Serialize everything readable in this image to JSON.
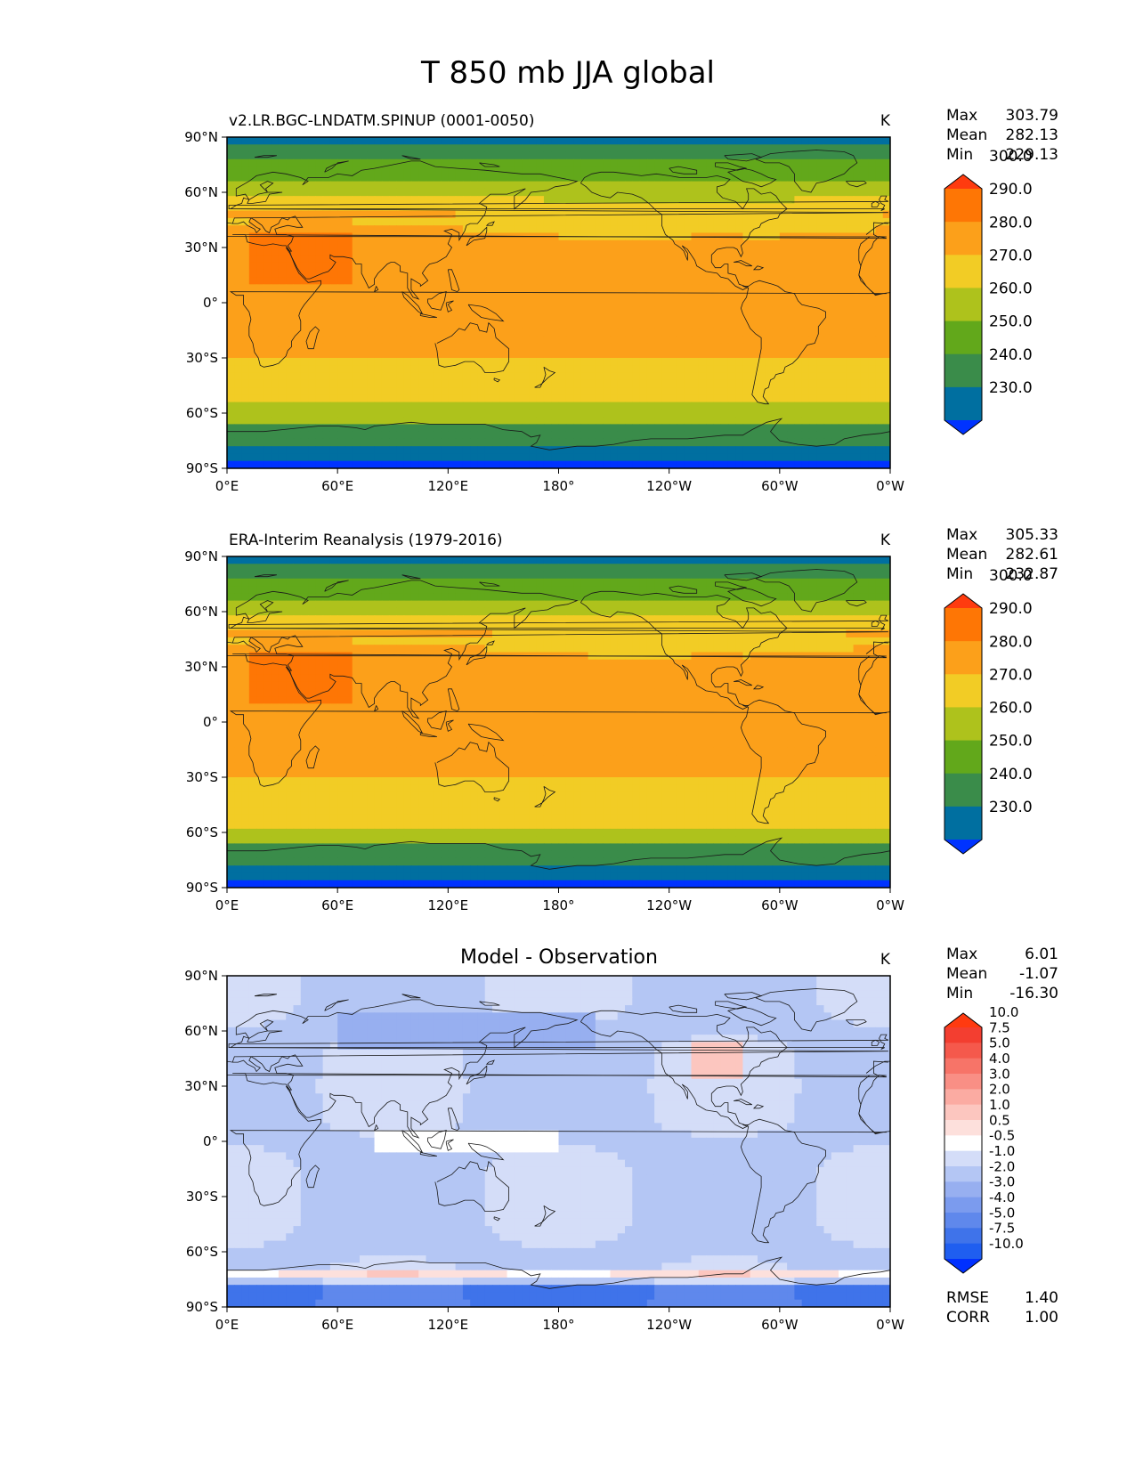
{
  "figure": {
    "title": "T 850 mb JJA global"
  },
  "axis_ticks": {
    "lon": [
      "0°E",
      "60°E",
      "120°E",
      "180°",
      "120°W",
      "60°W",
      "0°W"
    ],
    "lat": [
      "90°N",
      "60°N",
      "30°N",
      "0°",
      "30°S",
      "60°S",
      "90°S"
    ]
  },
  "colors": {
    "abs_fill": [
      "#0033ff",
      "#006fa0",
      "#3a8c4a",
      "#62a81b",
      "#aec21c",
      "#f2cc25",
      "#fca01a",
      "#fe7605",
      "#ff3b0f"
    ],
    "diff_fill": [
      "#0030ff",
      "#1f5ef0",
      "#3f73ea",
      "#5f88ec",
      "#7b9bee",
      "#97aff0",
      "#b4c6f4",
      "#d4ddf8",
      "#ffffff",
      "#fde0dc",
      "#fcc6bf",
      "#fbaba2",
      "#f98f85",
      "#f77468",
      "#f5594c",
      "#f33e30",
      "#ff3a10"
    ],
    "land_missing": "#ffffff",
    "coast": "#1a1a1a"
  },
  "chart_data": [
    {
      "type": "heatmap",
      "panel": "test",
      "title_left": "v2.LR.BGC-LNDATM.SPINUP (0001-0050)",
      "units": "K",
      "stats": {
        "max_label": "Max",
        "mean_label": "Mean",
        "min_label": "Min",
        "max": "303.79",
        "mean": "282.13",
        "min": "229.13"
      },
      "colorbar_levels": [
        "230.0",
        "240.0",
        "250.0",
        "260.0",
        "270.0",
        "280.0",
        "290.0",
        "300.0"
      ],
      "xlim": [
        0,
        360
      ],
      "ylim": [
        -90,
        90
      ]
    },
    {
      "type": "heatmap",
      "panel": "reference",
      "title_left": "ERA-Interim Reanalysis (1979-2016)",
      "units": "K",
      "stats": {
        "max_label": "Max",
        "mean_label": "Mean",
        "min_label": "Min",
        "max": "305.33",
        "mean": "282.61",
        "min": "232.87"
      },
      "colorbar_levels": [
        "230.0",
        "240.0",
        "250.0",
        "260.0",
        "270.0",
        "280.0",
        "290.0",
        "300.0"
      ],
      "xlim": [
        0,
        360
      ],
      "ylim": [
        -90,
        90
      ]
    },
    {
      "type": "heatmap",
      "panel": "diff",
      "title_center": "Model - Observation",
      "units": "K",
      "stats": {
        "max_label": "Max",
        "mean_label": "Mean",
        "min_label": "Min",
        "max": "6.01",
        "mean": "-1.07",
        "min": "-16.30"
      },
      "metrics": {
        "rmse_label": "RMSE",
        "rmse": "1.40",
        "corr_label": "CORR",
        "corr": "1.00"
      },
      "colorbar_levels": [
        "-10.0",
        "-7.5",
        "-5.0",
        "-4.0",
        "-3.0",
        "-2.0",
        "-1.0",
        "-0.5",
        "0.5",
        "1.0",
        "2.0",
        "3.0",
        "4.0",
        "5.0",
        "7.5",
        "10.0"
      ],
      "xlim": [
        0,
        360
      ],
      "ylim": [
        -90,
        90
      ]
    }
  ]
}
